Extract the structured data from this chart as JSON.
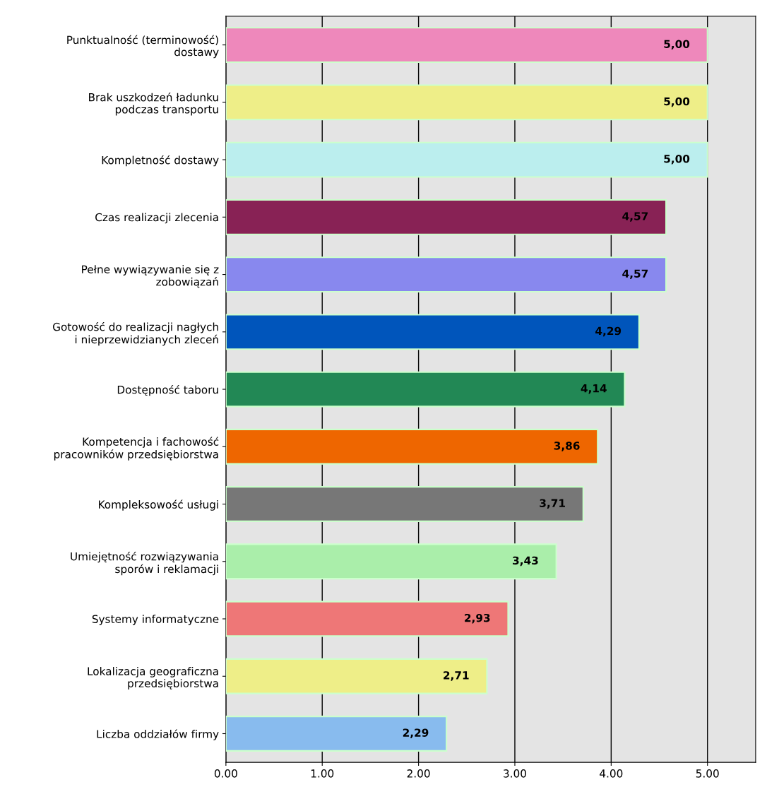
{
  "chart_data": {
    "type": "bar",
    "orientation": "horizontal",
    "categories": [
      "Punktualność (terminowość)\ndostawy",
      "Brak uszkodzeń ładunku\npodczas transportu",
      "Kompletność dostawy",
      "Czas realizacji zlecenia",
      "Pełne wywiązywanie się z\nzobowiązań",
      "Gotowość do realizacji nagłych\ni nieprzewidzianych zleceń",
      "Dostępność taboru",
      "Kompetencja i fachowość\npracowników przedsiębiorstwa",
      "Kompleksowość usługi",
      "Umiejętność rozwiązywania\nsporów i reklamacji",
      "Systemy informatyczne",
      "Lokalizacja geograficzna\nprzedsiębiorstwa",
      "Liczba oddziałów firmy"
    ],
    "values": [
      5.0,
      5.0,
      5.0,
      4.57,
      4.57,
      4.29,
      4.14,
      3.86,
      3.71,
      3.43,
      2.93,
      2.71,
      2.29
    ],
    "value_labels": [
      "5,00",
      "5,00",
      "5,00",
      "4,57",
      "4,57",
      "4,29",
      "4,14",
      "3,86",
      "3,71",
      "3,43",
      "2,93",
      "2,71",
      "2,29"
    ],
    "colors": [
      "#ee88bb",
      "#eeee88",
      "#bbeeee",
      "#882255",
      "#8888ee",
      "#0055bb",
      "#228855",
      "#ee6600",
      "#777777",
      "#aaeeaa",
      "#ee7777",
      "#eeee88",
      "#88bbee"
    ],
    "xlim": [
      0,
      5.5
    ],
    "xticks": [
      {
        "value": 0,
        "label": "0.00"
      },
      {
        "value": 1,
        "label": "1.00"
      },
      {
        "value": 2,
        "label": "2.00"
      },
      {
        "value": 3,
        "label": "3.00"
      },
      {
        "value": 4,
        "label": "4.00"
      },
      {
        "value": 5,
        "label": "5.00"
      }
    ],
    "grid": "x"
  }
}
